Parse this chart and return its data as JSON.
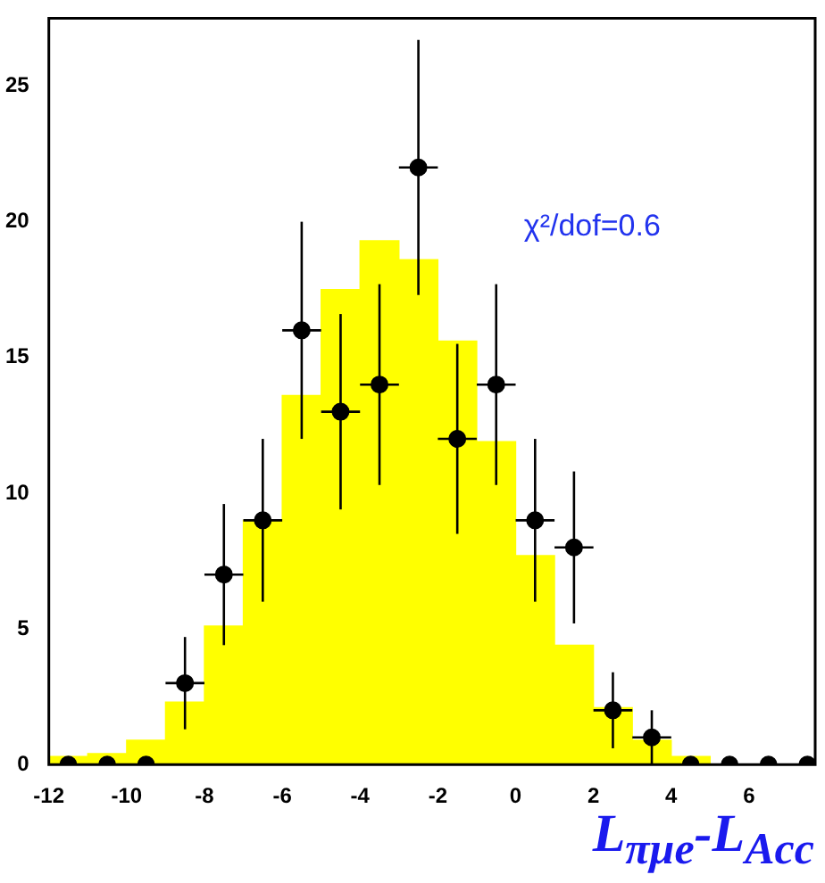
{
  "chart_data": {
    "type": "histogram",
    "xlabel": "L$_{πμe}$-L$_{Acc}$",
    "annotations": [
      "χ²/dof=0.6"
    ],
    "xlim": [
      -12,
      7.7
    ],
    "ylim": [
      0,
      27.5
    ],
    "xticks": [
      -12,
      -10,
      -8,
      -6,
      -4,
      -2,
      0,
      2,
      4,
      6
    ],
    "yticks": [
      0,
      5,
      10,
      15,
      20,
      25
    ],
    "grid": false,
    "legend": false,
    "series": [
      {
        "type": "histogram",
        "color": "#ffff00",
        "bins": [
          -12,
          -11,
          -10,
          -9,
          -8,
          -7,
          -6,
          -5,
          -4,
          -3,
          -2,
          -1,
          0,
          1,
          2,
          3,
          4,
          5,
          6,
          7
        ],
        "values": [
          0.3,
          0.4,
          0.9,
          2.3,
          5.1,
          9.0,
          13.6,
          17.5,
          19.3,
          18.6,
          15.6,
          11.9,
          7.7,
          4.4,
          2.1,
          0.9,
          0.3,
          0,
          0
        ]
      },
      {
        "type": "scatter",
        "color": "#000000",
        "marker": "circle",
        "x": [
          -11.5,
          -10.5,
          -9.5,
          -8.5,
          -7.5,
          -6.5,
          -5.5,
          -4.5,
          -3.5,
          -2.5,
          -1.5,
          -0.5,
          0.5,
          1.5,
          2.5,
          3.5,
          4.5,
          5.5,
          6.5,
          7.5
        ],
        "values": [
          0,
          0,
          0,
          3,
          7,
          9,
          16,
          13,
          14,
          22,
          12,
          14,
          9,
          8,
          2,
          1,
          0,
          0,
          0,
          0
        ],
        "errors": [
          null,
          null,
          null,
          1.7,
          2.6,
          3,
          4,
          3.6,
          3.7,
          4.7,
          3.5,
          3.7,
          3,
          2.8,
          1.4,
          1,
          null,
          null,
          null,
          null
        ],
        "xerrors": [
          null,
          null,
          null,
          0.5,
          0.5,
          0.5,
          0.5,
          0.5,
          0.5,
          0.5,
          0.5,
          0.5,
          0.5,
          0.5,
          0.5,
          0.5,
          null,
          null,
          null,
          null
        ]
      }
    ]
  }
}
